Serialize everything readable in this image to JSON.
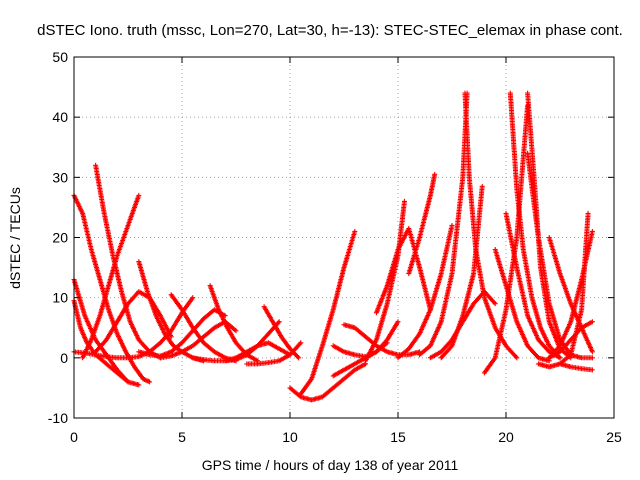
{
  "chart_data": {
    "type": "scatter",
    "title": "dSTEC Iono. truth (mssc, Lon=270, Lat=30, h=-13): STEC-STEC_elemax in phase cont.",
    "xlabel": "GPS time / hours of day 138 of year 2011",
    "ylabel": "dSTEC  / TECUs",
    "xlim": [
      0,
      25
    ],
    "ylim": [
      -10,
      50
    ],
    "xticks": [
      0,
      5,
      10,
      15,
      20,
      25
    ],
    "yticks": [
      -10,
      0,
      10,
      20,
      30,
      40,
      50
    ],
    "grid": true,
    "marker": "plus",
    "color": "#ff0000",
    "series": [
      {
        "x": [
          0.0,
          0.4,
          0.8,
          1.2,
          1.6,
          2.0,
          2.4,
          2.8,
          3.2,
          3.5
        ],
        "y": [
          27.0,
          24.0,
          18.0,
          13.0,
          8.0,
          4.0,
          1.0,
          -1.5,
          -3.5,
          -4.0
        ]
      },
      {
        "x": [
          0.0,
          0.5,
          1.0,
          1.5,
          2.0,
          2.5,
          3.0
        ],
        "y": [
          13.0,
          7.0,
          3.0,
          0.5,
          -2.0,
          -4.0,
          -4.5
        ]
      },
      {
        "x": [
          0.0,
          0.3,
          0.6,
          1.0,
          1.5,
          2.0,
          2.5
        ],
        "y": [
          9.5,
          5.0,
          2.5,
          0.5,
          -1.0,
          -2.5,
          -4.0
        ]
      },
      {
        "x": [
          0.0,
          0.5,
          1.0,
          1.5,
          2.0,
          2.5,
          3.0,
          3.5,
          4.0,
          4.5,
          5.0,
          5.5
        ],
        "y": [
          1.0,
          0.8,
          0.5,
          0.2,
          0.0,
          0.0,
          0.2,
          1.0,
          2.5,
          4.5,
          7.5,
          10.0
        ]
      },
      {
        "x": [
          0.4,
          0.8,
          1.2,
          1.6,
          2.0,
          2.5,
          3.0
        ],
        "y": [
          0.0,
          3.0,
          7.0,
          12.0,
          17.0,
          22.0,
          27.0
        ]
      },
      {
        "x": [
          1.0,
          1.4,
          1.8,
          2.2,
          2.6,
          3.0,
          3.5,
          4.0
        ],
        "y": [
          32.0,
          24.0,
          17.0,
          11.0,
          6.0,
          3.0,
          1.0,
          0.0
        ]
      },
      {
        "x": [
          1.0,
          1.5,
          2.0,
          2.5,
          3.0,
          3.5,
          4.0,
          4.5
        ],
        "y": [
          1.0,
          3.0,
          6.0,
          9.0,
          11.0,
          10.0,
          7.0,
          3.5
        ]
      },
      {
        "x": [
          3.0,
          3.4,
          3.8,
          4.2,
          4.6,
          5.0,
          5.5,
          6.0
        ],
        "y": [
          16.0,
          11.0,
          7.0,
          4.0,
          2.0,
          1.0,
          0.0,
          -0.5
        ]
      },
      {
        "x": [
          3.0,
          3.5,
          4.0,
          4.5,
          5.0,
          5.5,
          6.0,
          6.5,
          7.0
        ],
        "y": [
          1.0,
          0.5,
          0.3,
          1.0,
          2.5,
          4.5,
          6.5,
          8.0,
          7.0
        ]
      },
      {
        "x": [
          4.5,
          5.0,
          5.5,
          6.0,
          6.5,
          7.0,
          7.5
        ],
        "y": [
          10.5,
          8.0,
          5.0,
          2.5,
          1.0,
          0.0,
          -0.5
        ]
      },
      {
        "x": [
          4.0,
          4.5,
          5.0,
          5.5,
          6.0,
          6.5,
          7.0,
          7.5
        ],
        "y": [
          0.0,
          0.3,
          1.0,
          2.0,
          3.5,
          5.0,
          6.0,
          4.5
        ]
      },
      {
        "x": [
          6.3,
          6.7,
          7.1,
          7.5,
          8.0,
          8.5
        ],
        "y": [
          12.0,
          8.0,
          5.0,
          2.5,
          0.5,
          -0.5
        ]
      },
      {
        "x": [
          5.5,
          6.0,
          6.5,
          7.0,
          7.5,
          8.0,
          8.5,
          9.0,
          9.5
        ],
        "y": [
          0.0,
          -0.3,
          -0.5,
          -0.5,
          -0.3,
          0.5,
          2.0,
          4.0,
          6.0
        ]
      },
      {
        "x": [
          7.0,
          7.5,
          8.0,
          8.5,
          9.0,
          9.5,
          10.0
        ],
        "y": [
          -0.5,
          0.0,
          1.0,
          2.0,
          2.5,
          1.5,
          0.5
        ]
      },
      {
        "x": [
          8.8,
          9.2,
          9.6,
          10.0,
          10.4
        ],
        "y": [
          8.5,
          6.0,
          3.5,
          1.5,
          0.0
        ]
      },
      {
        "x": [
          8.0,
          8.5,
          9.0,
          9.5,
          10.0,
          10.5
        ],
        "y": [
          -1.0,
          -1.0,
          -0.8,
          -0.5,
          0.5,
          2.5
        ]
      },
      {
        "x": [
          10.0,
          10.5,
          11.0,
          11.5,
          12.0,
          12.5,
          13.0,
          13.5
        ],
        "y": [
          -5.0,
          -6.5,
          -7.0,
          -6.5,
          -5.0,
          -3.5,
          -2.0,
          -1.0
        ]
      },
      {
        "x": [
          10.5,
          11.0,
          11.5,
          12.0,
          12.5,
          13.0
        ],
        "y": [
          -6.0,
          -3.5,
          2.0,
          8.0,
          15.0,
          21.0
        ]
      },
      {
        "x": [
          12.0,
          12.5,
          13.0,
          13.5,
          14.0,
          14.5,
          15.0
        ],
        "y": [
          -3.0,
          -2.0,
          -1.0,
          0.0,
          1.0,
          3.0,
          6.0
        ]
      },
      {
        "x": [
          12.0,
          12.5,
          13.0,
          13.5,
          14.0,
          14.5
        ],
        "y": [
          2.0,
          1.0,
          0.5,
          0.2,
          1.0,
          2.5
        ]
      },
      {
        "x": [
          12.5,
          13.0,
          13.5,
          14.0,
          14.5,
          15.0,
          15.5,
          16.0
        ],
        "y": [
          5.5,
          5.0,
          3.5,
          2.0,
          1.0,
          0.5,
          0.5,
          1.0
        ]
      },
      {
        "x": [
          13.5,
          14.0,
          14.5,
          15.0,
          15.3
        ],
        "y": [
          -0.5,
          3.0,
          9.0,
          17.0,
          26.0
        ]
      },
      {
        "x": [
          14.0,
          14.5,
          15.0,
          15.5,
          16.0,
          16.5
        ],
        "y": [
          7.5,
          12.0,
          18.0,
          21.5,
          15.0,
          8.0
        ]
      },
      {
        "x": [
          15.0,
          15.5,
          16.0,
          16.5,
          17.0,
          17.5
        ],
        "y": [
          0.0,
          1.5,
          4.0,
          8.0,
          14.0,
          22.0
        ]
      },
      {
        "x": [
          15.5,
          16.0,
          16.5,
          16.7
        ],
        "y": [
          14.0,
          20.0,
          27.0,
          30.5
        ]
      },
      {
        "x": [
          16.0,
          16.5,
          17.0,
          17.5,
          18.0,
          18.2
        ],
        "y": [
          0.5,
          2.0,
          6.0,
          14.0,
          30.0,
          44.0
        ]
      },
      {
        "x": [
          18.1,
          18.3,
          18.6,
          19.0,
          19.5,
          20.0,
          20.5
        ],
        "y": [
          44.0,
          30.0,
          18.0,
          10.0,
          5.0,
          2.0,
          0.0
        ]
      },
      {
        "x": [
          17.0,
          17.5,
          18.0,
          18.5,
          18.9
        ],
        "y": [
          0.0,
          2.0,
          7.0,
          14.0,
          28.5
        ]
      },
      {
        "x": [
          16.5,
          17.0,
          17.5,
          18.0,
          18.5,
          19.0,
          19.5
        ],
        "y": [
          0.0,
          1.0,
          3.0,
          6.0,
          9.0,
          11.0,
          9.0
        ]
      },
      {
        "x": [
          19.0,
          19.5,
          20.0,
          20.5,
          21.0
        ],
        "y": [
          -2.5,
          0.0,
          8.0,
          20.0,
          42.0
        ]
      },
      {
        "x": [
          20.2,
          20.5,
          20.8,
          21.2,
          21.6,
          22.0,
          22.5
        ],
        "y": [
          44.0,
          28.0,
          18.0,
          10.0,
          5.0,
          2.0,
          0.0
        ]
      },
      {
        "x": [
          21.0,
          21.3,
          21.6,
          22.0,
          22.5,
          23.0
        ],
        "y": [
          44.0,
          30.0,
          15.0,
          6.0,
          1.5,
          0.0
        ]
      },
      {
        "x": [
          19.5,
          20.0,
          20.5,
          21.0,
          21.5,
          22.0
        ],
        "y": [
          18.0,
          12.0,
          6.0,
          2.0,
          0.0,
          -0.5
        ]
      },
      {
        "x": [
          20.0,
          20.5,
          21.0,
          21.5,
          22.0,
          22.5
        ],
        "y": [
          24.0,
          15.0,
          7.0,
          3.0,
          1.0,
          0.0
        ]
      },
      {
        "x": [
          21.0,
          21.5,
          22.0,
          22.5,
          23.0,
          23.5,
          24.0
        ],
        "y": [
          34.0,
          20.0,
          9.0,
          3.0,
          0.5,
          0.0,
          0.0
        ]
      },
      {
        "x": [
          21.5,
          22.0,
          22.5,
          23.0,
          23.5,
          23.8
        ],
        "y": [
          -1.0,
          -1.5,
          -1.0,
          0.5,
          8.0,
          24.0
        ]
      },
      {
        "x": [
          22.0,
          22.5,
          23.0,
          23.5,
          24.0
        ],
        "y": [
          0.0,
          2.0,
          6.0,
          13.0,
          21.0
        ]
      },
      {
        "x": [
          22.0,
          22.5,
          23.0,
          23.5,
          24.0
        ],
        "y": [
          0.0,
          1.0,
          3.0,
          5.0,
          6.0
        ]
      },
      {
        "x": [
          22.5,
          23.0,
          23.5,
          24.0
        ],
        "y": [
          -1.0,
          -1.5,
          -1.8,
          -2.0
        ]
      },
      {
        "x": [
          22.0,
          22.5,
          23.0,
          23.5,
          24.0
        ],
        "y": [
          20.0,
          14.0,
          9.0,
          5.0,
          1.0
        ]
      }
    ]
  }
}
